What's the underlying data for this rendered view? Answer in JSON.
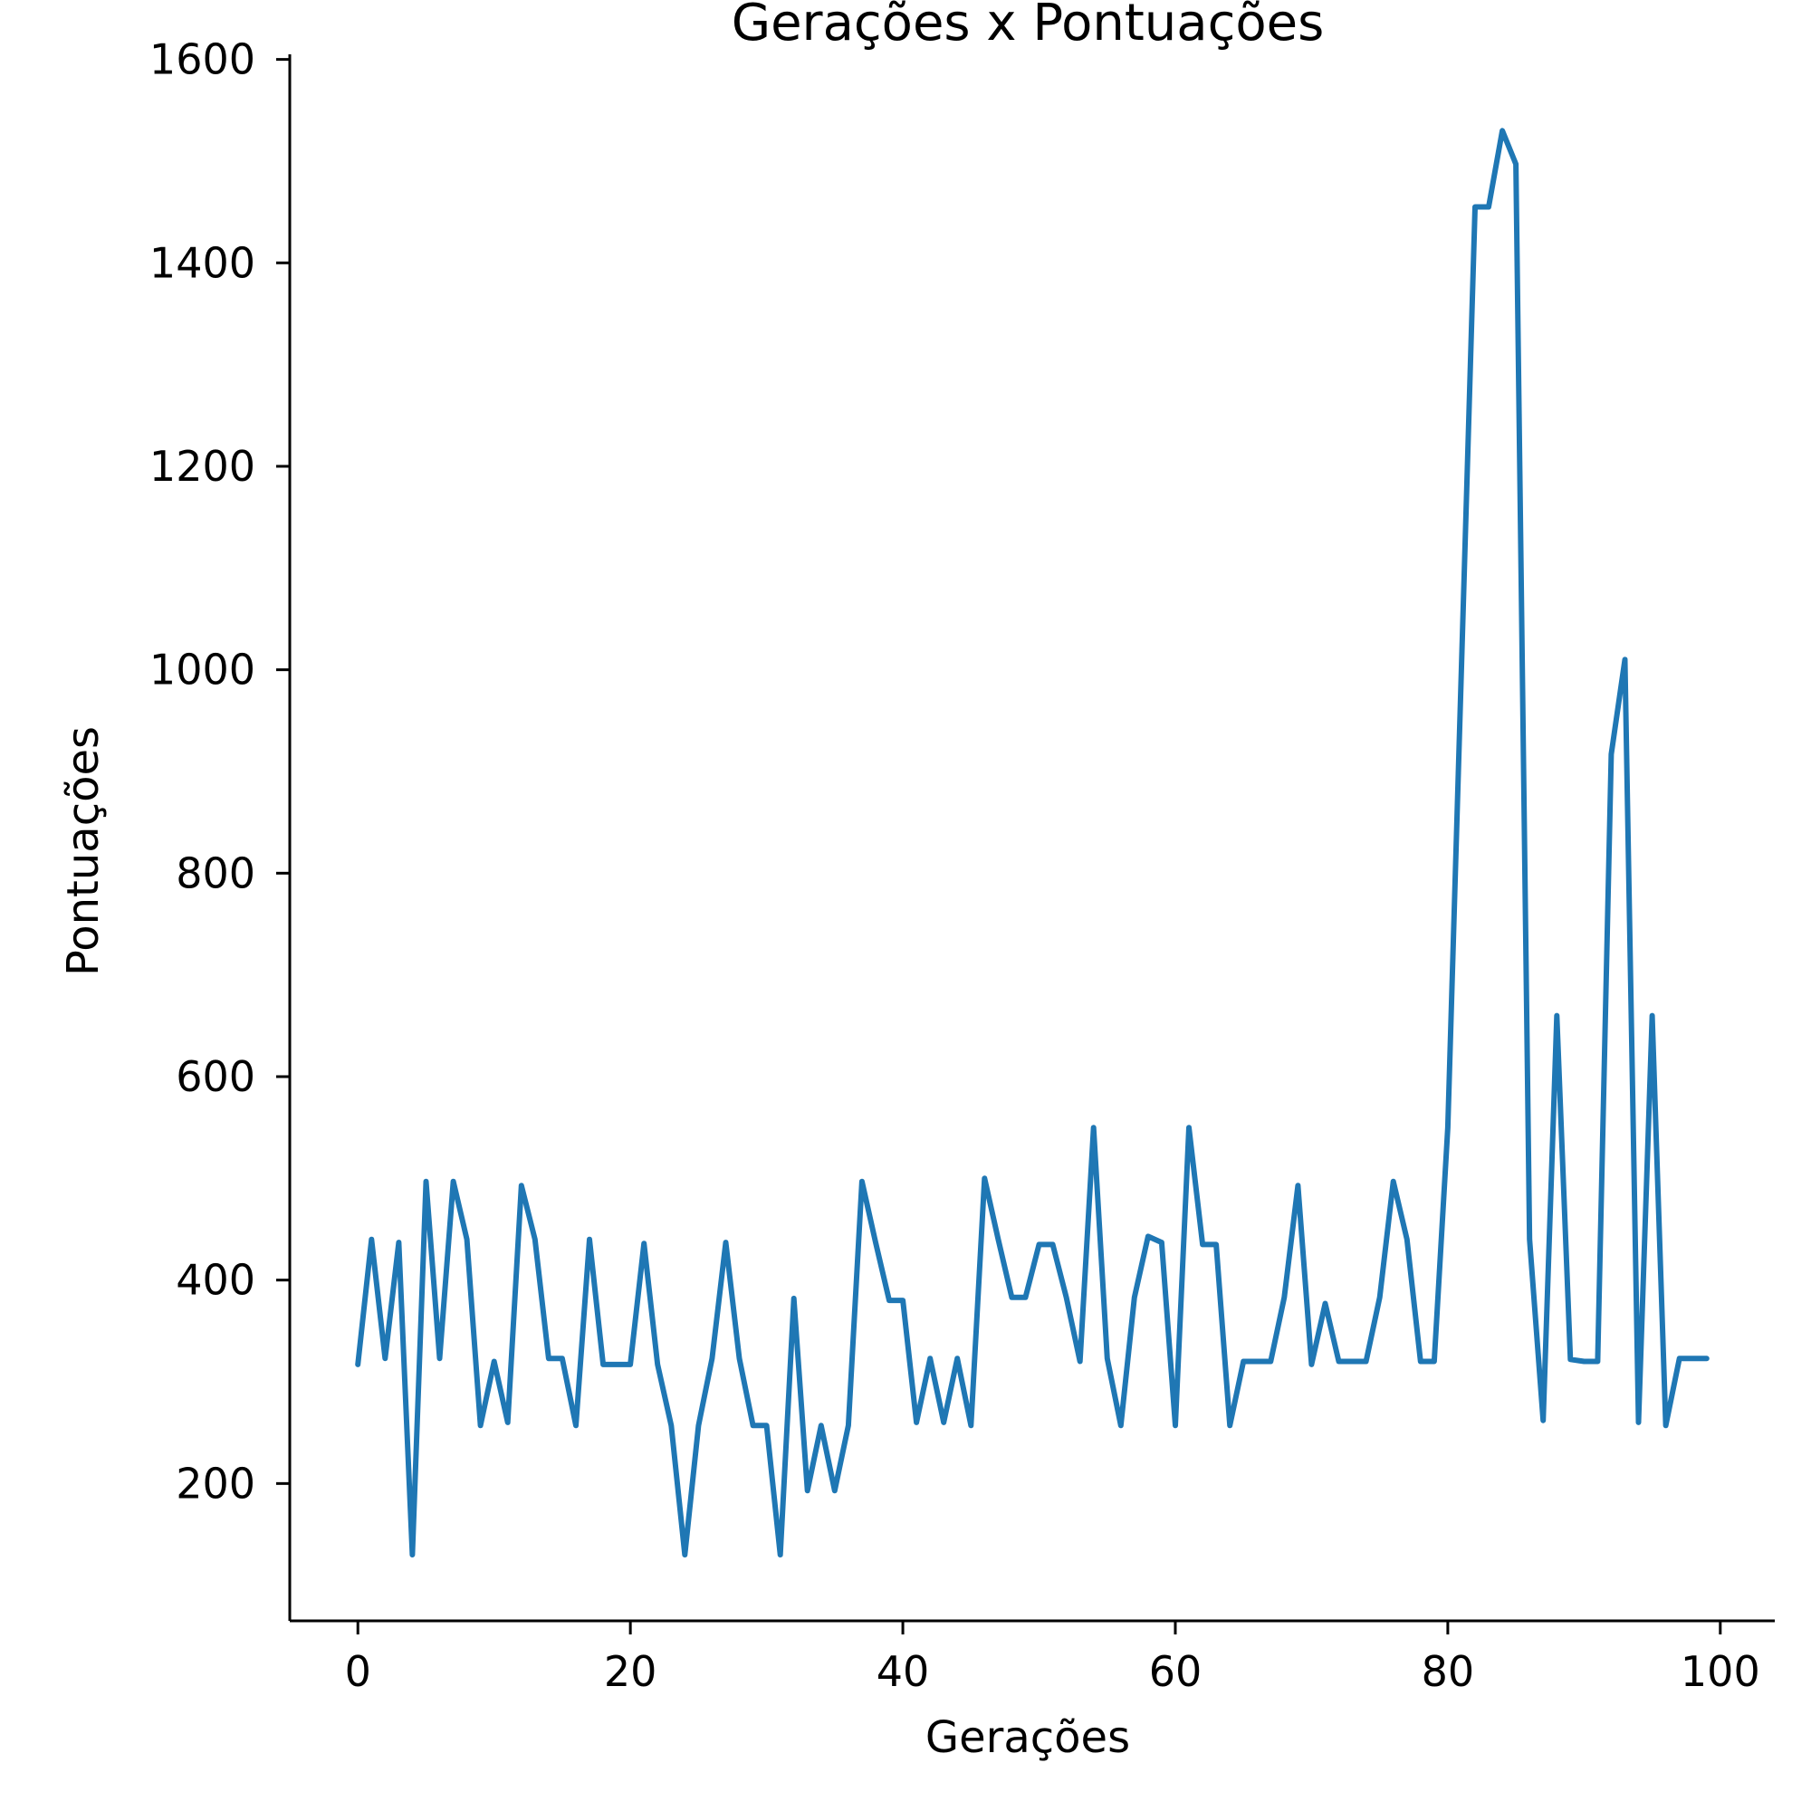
{
  "chart_data": {
    "type": "line",
    "title": "Gerações x Pontuações",
    "xlabel": "Gerações",
    "ylabel": "Pontuações",
    "xlim": [
      -5,
      104
    ],
    "ylim": [
      65,
      1605
    ],
    "xticks": [
      0,
      20,
      40,
      60,
      80,
      100
    ],
    "yticks": [
      200,
      400,
      600,
      800,
      1000,
      1200,
      1400,
      1600
    ],
    "xtick_labels": [
      "0",
      "20",
      "40",
      "60",
      "80",
      "100"
    ],
    "ytick_labels": [
      "200",
      "400",
      "600",
      "800",
      "1000",
      "1200",
      "1400",
      "1600"
    ],
    "grid": false,
    "series_color": "#1f77b4",
    "series": [
      {
        "x": [
          0,
          1,
          2,
          3,
          4,
          5,
          6,
          7,
          8,
          9,
          10,
          11,
          12,
          13,
          14,
          15,
          16,
          17,
          18,
          19,
          20,
          21,
          22,
          23,
          24,
          25,
          26,
          27,
          28,
          29,
          30,
          31,
          32,
          33,
          34,
          35,
          36,
          37,
          38,
          39,
          40,
          41,
          42,
          43,
          44,
          45,
          46,
          47,
          48,
          49,
          50,
          51,
          52,
          53,
          54,
          55,
          56,
          57,
          58,
          59,
          60,
          61,
          62,
          63,
          64,
          65,
          66,
          67,
          68,
          69,
          70,
          71,
          72,
          73,
          74,
          75,
          76,
          77,
          78,
          79,
          80,
          81,
          82,
          83,
          84,
          85,
          86,
          87,
          88,
          89,
          90,
          91,
          92,
          93,
          94,
          95,
          96,
          97,
          98,
          99
        ],
        "values": [
          317,
          440,
          323,
          437,
          130,
          497,
          323,
          497,
          440,
          257,
          320,
          260,
          493,
          440,
          323,
          323,
          257,
          440,
          317,
          317,
          317,
          436,
          317,
          257,
          130,
          257,
          323,
          437,
          323,
          257,
          257,
          130,
          382,
          193,
          257,
          193,
          257,
          497,
          437,
          380,
          380,
          260,
          323,
          260,
          323,
          257,
          500,
          440,
          383,
          383,
          435,
          435,
          383,
          320,
          550,
          323,
          257,
          383,
          443,
          437,
          257,
          550,
          435,
          435,
          257,
          320,
          320,
          320,
          383,
          493,
          317,
          377,
          320,
          320,
          320,
          383,
          497,
          440,
          320,
          320,
          550,
          1000,
          1455,
          1455,
          1530,
          1497,
          440,
          262,
          660,
          322,
          320,
          320,
          917,
          1010,
          260,
          660,
          257,
          323,
          323,
          323
        ]
      }
    ]
  }
}
